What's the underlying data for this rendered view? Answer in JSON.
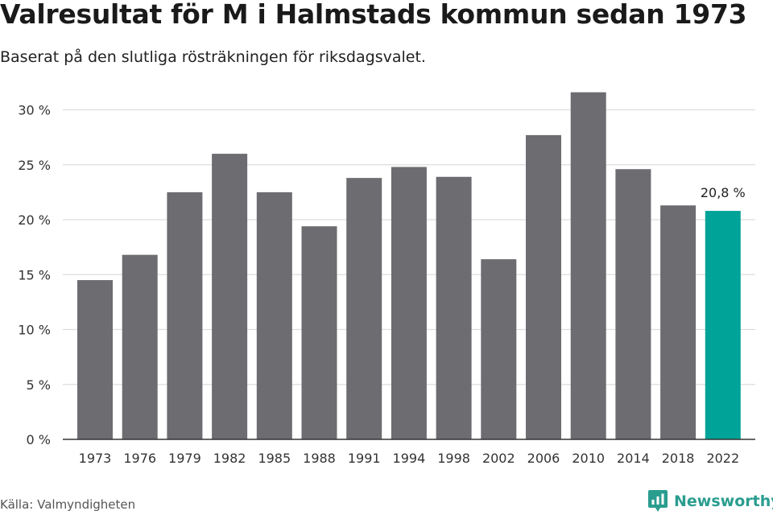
{
  "header": {
    "title": "Valresultat för M i Halmstads kommun sedan 1973",
    "subtitle": "Baserat på den slutliga rösträkningen för riksdagsvalet."
  },
  "footer": {
    "source": "Källa: Valmyndigheten",
    "brand_name": "Newsworthy",
    "brand_icon": "newsworthy-logo-icon"
  },
  "colors": {
    "bar_default": "#6d6c71",
    "bar_highlight": "#00a398",
    "grid": "#dddddd",
    "axis": "#333333",
    "brand": "#2a9d8f"
  },
  "chart_data": {
    "type": "bar",
    "title": "Valresultat för M i Halmstads kommun sedan 1973",
    "subtitle": "Baserat på den slutliga rösträkningen för riksdagsvalet.",
    "xlabel": "",
    "ylabel": "",
    "categories": [
      "1973",
      "1976",
      "1979",
      "1982",
      "1985",
      "1988",
      "1991",
      "1994",
      "1998",
      "2002",
      "2006",
      "2010",
      "2014",
      "2018",
      "2022"
    ],
    "values": [
      14.5,
      16.8,
      22.5,
      26.0,
      22.5,
      19.4,
      23.8,
      24.8,
      23.9,
      16.4,
      27.7,
      31.6,
      24.6,
      21.3,
      20.8
    ],
    "ylim": [
      0,
      32
    ],
    "yticks": [
      0,
      5,
      10,
      15,
      20,
      25,
      30
    ],
    "ytick_labels": [
      "0 %",
      "5 %",
      "10 %",
      "15 %",
      "20 %",
      "25 %",
      "30 %"
    ],
    "grid": true,
    "legend": "none",
    "highlight_index": 14,
    "annotations": [
      {
        "category": "2022",
        "label": "20,8 %"
      }
    ]
  }
}
